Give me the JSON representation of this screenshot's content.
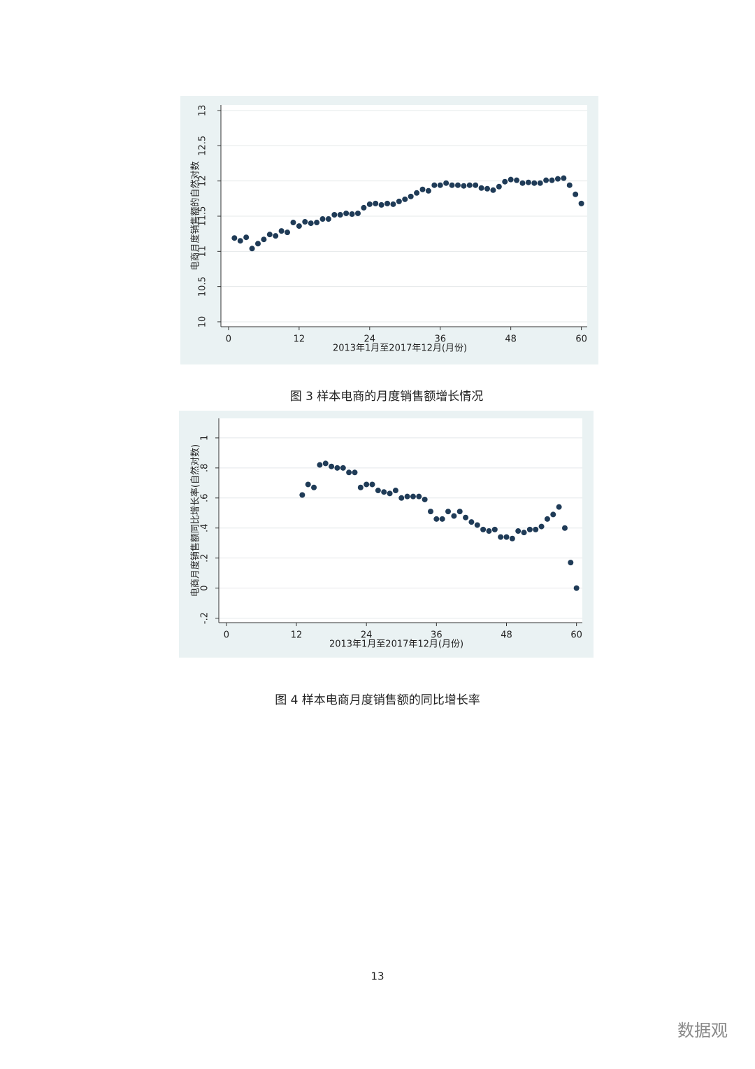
{
  "chart_data": [
    {
      "type": "scatter",
      "ylabel": "电商月度销售额的自然对数",
      "xlabel": "2013年1月至2017年12月(月份)",
      "color": "#1f3b57",
      "grid": true,
      "xlim": [
        -1.3,
        61.0
      ],
      "ylim": [
        9.93,
        13.08
      ],
      "xticks": [
        0,
        12,
        24,
        36,
        48,
        60
      ],
      "yticks": [
        10,
        10.5,
        11,
        11.5,
        12,
        12.5,
        13
      ],
      "x": [
        1,
        2,
        3,
        4,
        5,
        6,
        7,
        8,
        9,
        10,
        11,
        12,
        13,
        14,
        15,
        16,
        17,
        18,
        19,
        20,
        21,
        22,
        23,
        24,
        25,
        26,
        27,
        28,
        29,
        30,
        31,
        32,
        33,
        34,
        35,
        36,
        37,
        38,
        39,
        40,
        41,
        42,
        43,
        44,
        45,
        46,
        47,
        48,
        49,
        50,
        51,
        52,
        53,
        54,
        55,
        56,
        57,
        58,
        59,
        60
      ],
      "values": [
        11.19,
        11.15,
        11.2,
        11.04,
        11.11,
        11.17,
        11.24,
        11.22,
        11.29,
        11.27,
        11.41,
        11.36,
        11.42,
        11.4,
        11.41,
        11.46,
        11.46,
        11.52,
        11.52,
        11.54,
        11.53,
        11.54,
        11.62,
        11.67,
        11.68,
        11.66,
        11.68,
        11.67,
        11.71,
        11.74,
        11.78,
        11.83,
        11.88,
        11.86,
        11.94,
        11.94,
        11.97,
        11.94,
        11.94,
        11.93,
        11.94,
        11.94,
        11.9,
        11.89,
        11.87,
        11.92,
        11.99,
        12.02,
        12.01,
        11.97,
        11.98,
        11.97,
        11.97,
        12.01,
        12.01,
        12.03,
        12.04,
        11.94,
        11.81,
        11.68
      ]
    },
    {
      "type": "scatter",
      "ylabel": "电商月度销售额同比增长率(自然对数)",
      "xlabel": "2013年1月至2017年12月(月份)",
      "color": "#1f3b57",
      "grid": true,
      "xlim": [
        -1.3,
        61.0
      ],
      "ylim": [
        -0.23,
        1.13
      ],
      "xticks": [
        0,
        12,
        24,
        36,
        48,
        60
      ],
      "yticks": [
        {
          "value": -0.2,
          "label": "-.2"
        },
        0,
        {
          "value": 0.2,
          "label": ".2"
        },
        {
          "value": 0.4,
          "label": ".4"
        },
        {
          "value": 0.6,
          "label": ".6"
        },
        {
          "value": 0.8,
          "label": ".8"
        },
        1
      ],
      "x": [
        13,
        14,
        15,
        16,
        17,
        18,
        19,
        20,
        21,
        22,
        23,
        24,
        25,
        26,
        27,
        28,
        29,
        30,
        31,
        32,
        33,
        34,
        35,
        36,
        37,
        38,
        39,
        40,
        41,
        42,
        43,
        44,
        45,
        46,
        47,
        48,
        49,
        50,
        51,
        52,
        53,
        54,
        55,
        56,
        57,
        58,
        59,
        60
      ],
      "values": [
        0.62,
        0.69,
        0.67,
        0.82,
        0.83,
        0.81,
        0.8,
        0.8,
        0.77,
        0.77,
        0.67,
        0.69,
        0.69,
        0.65,
        0.64,
        0.63,
        0.65,
        0.6,
        0.61,
        0.61,
        0.61,
        0.59,
        0.51,
        0.46,
        0.46,
        0.51,
        0.48,
        0.51,
        0.47,
        0.44,
        0.42,
        0.39,
        0.38,
        0.39,
        0.34,
        0.34,
        0.33,
        0.38,
        0.37,
        0.39,
        0.39,
        0.41,
        0.46,
        0.49,
        0.54,
        0.4,
        0.17,
        0
      ]
    }
  ],
  "captions": [
    "图 3 样本电商的月度销售额增长情况",
    "图 4 样本电商月度销售额的同比增长率"
  ],
  "page_number": "13",
  "watermark": "数据观"
}
